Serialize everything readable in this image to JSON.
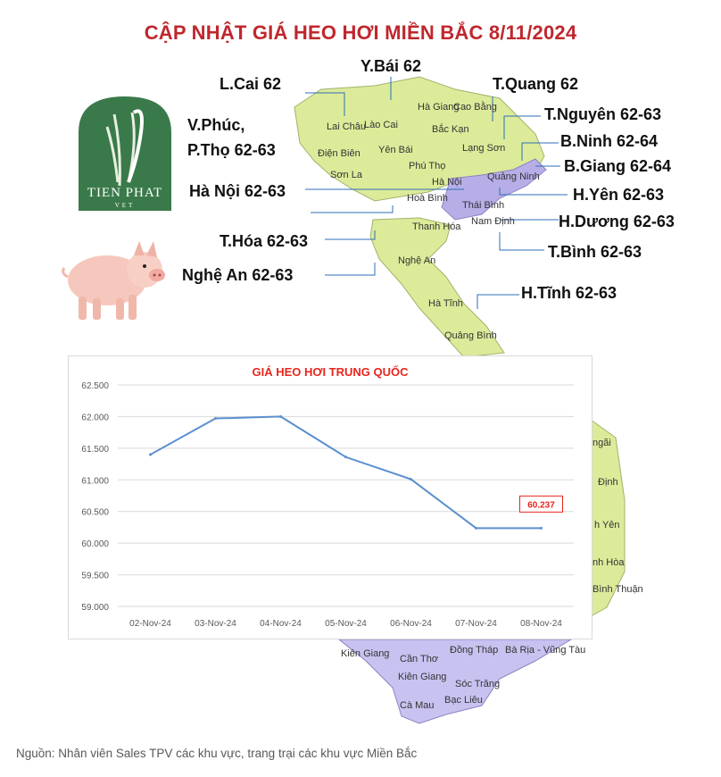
{
  "title": "CẬP NHẬT GIÁ HEO HƠI MIỀN BẮC  8/11/2024",
  "logo": {
    "name": "TIEN PHAT",
    "sub": "VET"
  },
  "province_prices": [
    {
      "label": "L.Cai 62"
    },
    {
      "label": "Y.Bái 62"
    },
    {
      "label": "T.Quang 62"
    },
    {
      "label": "V.Phúc,"
    },
    {
      "label": "P.Thọ 62-63"
    },
    {
      "label": "T.Nguyên 62-63"
    },
    {
      "label": "B.Ninh 62-64"
    },
    {
      "label": "B.Giang 62-64"
    },
    {
      "label": "Hà Nội 62-63"
    },
    {
      "label": "H.Yên 62-63"
    },
    {
      "label": "H.Dương 62-63"
    },
    {
      "label": "T.Hóa 62-63"
    },
    {
      "label": "T.Bình 62-63"
    },
    {
      "label": "Nghệ An 62-63"
    },
    {
      "label": "H.Tĩnh 62-63"
    }
  ],
  "map_names": [
    "Hà Giang",
    "Cao Bằng",
    "Lai Châu",
    "Lào Cai",
    "Bắc Kạn",
    "Điện Biên",
    "Yên Bái",
    "Lạng Sơn",
    "Phú Thọ",
    "Sơn La",
    "Hà Nội",
    "Quảng Ninh",
    "Hoà Bình",
    "Thái Bình",
    "Nam Định",
    "Thanh Hóa",
    "Nghệ An",
    "Hà Tĩnh",
    "Quảng Bình",
    "ngãi",
    "Định",
    "h Yên",
    "nh Hòa",
    "Bình Thuận",
    "Kiên Giang",
    "Cần Thơ",
    "Đồng Tháp",
    "Bà Rịa - Vũng Tàu",
    "Kiên Giang",
    "Sóc Trăng",
    "Cà Mau",
    "Bạc Liêu"
  ],
  "chart_data": {
    "type": "line",
    "title": "GIÁ HEO HƠI TRUNG QUỐC",
    "categories": [
      "02-Nov-24",
      "03-Nov-24",
      "04-Nov-24",
      "05-Nov-24",
      "06-Nov-24",
      "07-Nov-24",
      "08-Nov-24"
    ],
    "values": [
      61.4,
      61.97,
      62.0,
      61.36,
      61.01,
      60.237,
      60.237
    ],
    "ylim": [
      59.0,
      62.5
    ],
    "yticks": [
      "59.000",
      "59.500",
      "60.000",
      "60.500",
      "61.000",
      "61.500",
      "62.000",
      "62.500"
    ],
    "annotation": "60.237",
    "line_color": "#5b8fd0",
    "annotation_color": "#e8251d",
    "grid": true
  },
  "footer": "Nguồn: Nhân viên Sales TPV các khu vực, trang trại các khu vực Miền Bắc"
}
